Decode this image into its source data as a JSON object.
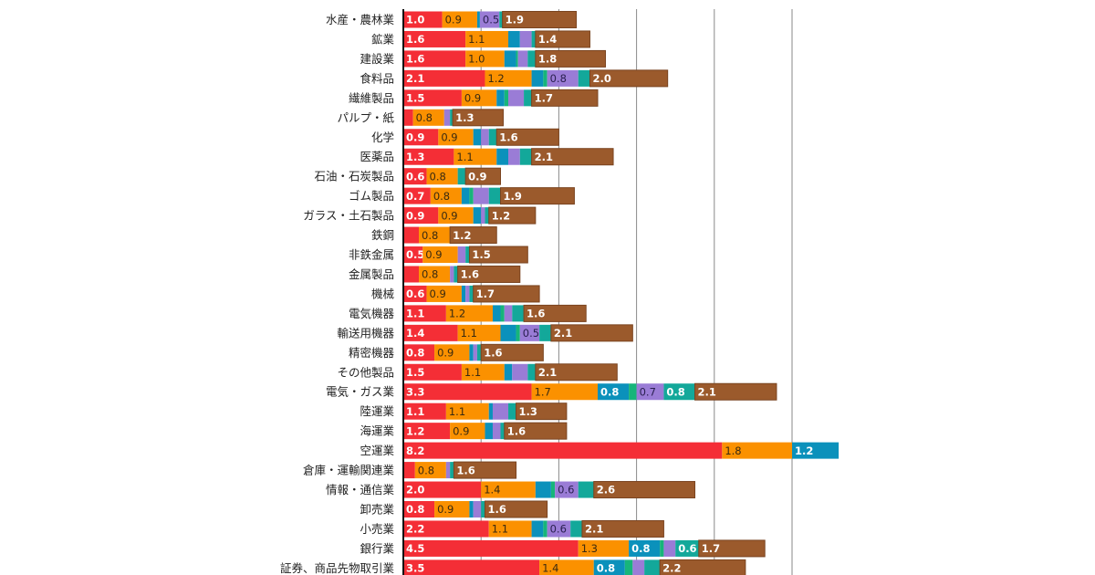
{
  "chart_data": {
    "type": "bar",
    "orientation": "horizontal",
    "stacked": true,
    "title": "",
    "xlabel": "",
    "ylabel": "",
    "xlim": [
      0,
      11
    ],
    "grid": true,
    "grid_step": 2,
    "legend": "none",
    "categories": [
      "水産・農林業",
      "鉱業",
      "建設業",
      "食料品",
      "繊維製品",
      "パルプ・紙",
      "化学",
      "医薬品",
      "石油・石炭製品",
      "ゴム製品",
      "ガラス・土石製品",
      "鉄鋼",
      "非鉄金属",
      "金属製品",
      "機械",
      "電気機器",
      "輸送用機器",
      "精密機器",
      "その他製品",
      "電気・ガス業",
      "陸運業",
      "海運業",
      "空運業",
      "倉庫・運輸関連業",
      "情報・通信業",
      "卸売業",
      "小売業",
      "銀行業",
      "証券、商品先物取引業"
    ],
    "series": [
      {
        "name": "s1",
        "color": "#f42e36",
        "label_color": "#ffffff",
        "values": [
          1.0,
          1.6,
          1.6,
          2.1,
          1.5,
          0.25,
          0.9,
          1.3,
          0.6,
          0.7,
          0.9,
          0.4,
          0.5,
          0.4,
          0.6,
          1.1,
          1.4,
          0.8,
          1.5,
          3.3,
          1.1,
          1.2,
          8.2,
          0.3,
          2.0,
          0.8,
          2.2,
          4.5,
          3.5
        ],
        "labels": [
          "1.0",
          "1.6",
          "1.6",
          "2.1",
          "1.5",
          "",
          "0.9",
          "1.3",
          "0.6",
          "0.7",
          "0.9",
          "",
          "0.5",
          "",
          "0.6",
          "1.1",
          "1.4",
          "0.8",
          "1.5",
          "3.3",
          "1.1",
          "1.2",
          "8.2",
          "",
          "2.0",
          "0.8",
          "2.2",
          "4.5",
          "3.5"
        ]
      },
      {
        "name": "s2",
        "color": "#fb9100",
        "label_color": "#3a2a10",
        "values": [
          0.9,
          1.1,
          1.0,
          1.2,
          0.9,
          0.8,
          0.9,
          1.1,
          0.8,
          0.8,
          0.9,
          0.8,
          0.9,
          0.8,
          0.9,
          1.2,
          1.1,
          0.9,
          1.1,
          1.7,
          1.1,
          0.9,
          1.8,
          0.8,
          1.4,
          0.9,
          1.1,
          1.3,
          1.4
        ],
        "labels": [
          "0.9",
          "1.1",
          "1.0",
          "1.2",
          "0.9",
          "0.8",
          "0.9",
          "1.1",
          "0.8",
          "0.8",
          "0.9",
          "0.8",
          "0.9",
          "0.8",
          "0.9",
          "1.2",
          "1.1",
          "0.9",
          "1.1",
          "1.7",
          "1.1",
          "0.9",
          "1.8",
          "0.8",
          "1.4",
          "0.9",
          "1.1",
          "1.3",
          "1.4"
        ]
      },
      {
        "name": "s3",
        "color": "#0b91bb",
        "label_color": "#ffffff",
        "values": [
          0.07,
          0.3,
          0.3,
          0.3,
          0.2,
          0,
          0.2,
          0.3,
          0,
          0.2,
          0.2,
          0,
          0,
          0,
          0.1,
          0.2,
          0.4,
          0.1,
          0.2,
          0.8,
          0.1,
          0.2,
          1.2,
          0,
          0.4,
          0.1,
          0.3,
          0.8,
          0.8
        ],
        "labels": [
          "",
          "",
          "",
          "",
          "",
          "",
          "",
          "",
          "",
          "",
          "",
          "",
          "",
          "",
          "",
          "",
          "",
          "",
          "",
          "0.8",
          "",
          "",
          "1.2",
          "",
          "",
          "",
          "",
          "0.8",
          "0.8"
        ]
      },
      {
        "name": "s4",
        "color": "#17b57a",
        "label_color": "#ffffff",
        "values": [
          0,
          0,
          0.05,
          0.1,
          0.1,
          0,
          0,
          0,
          0,
          0.1,
          0,
          0,
          0,
          0,
          0,
          0.1,
          0.1,
          0,
          0,
          0.2,
          0,
          0,
          0,
          0,
          0.1,
          0,
          0.1,
          0.1,
          0.2
        ],
        "labels": [
          "",
          "",
          "",
          "",
          "",
          "",
          "",
          "",
          "",
          "",
          "",
          "",
          "",
          "",
          "",
          "",
          "",
          "",
          "",
          "",
          "",
          "",
          "",
          "",
          "",
          "",
          "",
          "",
          ""
        ]
      },
      {
        "name": "s5",
        "color": "#9a7cd6",
        "label_color": "#2a2050",
        "values": [
          0.5,
          0.3,
          0.25,
          0.8,
          0.4,
          0.15,
          0.2,
          0.3,
          0,
          0.4,
          0.1,
          0,
          0.2,
          0.1,
          0.1,
          0.2,
          0.5,
          0.1,
          0.4,
          0.7,
          0.4,
          0.2,
          0,
          0.1,
          0.6,
          0.2,
          0.6,
          0.3,
          0.3
        ],
        "labels": [
          "0.5",
          "",
          "",
          "0.8",
          "",
          "",
          "",
          "",
          "",
          "",
          "",
          "",
          "",
          "",
          "",
          "",
          "0.5",
          "",
          "",
          "0.7",
          "",
          "",
          "",
          "",
          "0.6",
          "",
          "0.6",
          "",
          ""
        ]
      },
      {
        "name": "s6",
        "color": "#13a89a",
        "label_color": "#ffffff",
        "values": [
          0.08,
          0.1,
          0.2,
          0.3,
          0.2,
          0.07,
          0.2,
          0.3,
          0.2,
          0.3,
          0.1,
          0,
          0.1,
          0.1,
          0.1,
          0.3,
          0.3,
          0.1,
          0.2,
          0.8,
          0.2,
          0.1,
          0,
          0.1,
          0.4,
          0.1,
          0.3,
          0.6,
          0.4
        ],
        "labels": [
          "",
          "",
          "",
          "",
          "",
          "",
          "",
          "",
          "",
          "",
          "",
          "",
          "",
          "",
          "",
          "",
          "",
          "",
          "",
          "0.8",
          "",
          "",
          "",
          "",
          "",
          "",
          "",
          "0.6",
          ""
        ]
      },
      {
        "name": "s7",
        "color": "#9b5a2c",
        "label_color": "#ffffff",
        "values": [
          1.9,
          1.4,
          1.8,
          2.0,
          1.7,
          1.3,
          1.6,
          2.1,
          0.9,
          1.9,
          1.2,
          1.2,
          1.5,
          1.6,
          1.7,
          1.6,
          2.1,
          1.6,
          2.1,
          2.1,
          1.3,
          1.6,
          0,
          1.6,
          2.6,
          1.6,
          2.1,
          1.7,
          2.2
        ],
        "labels": [
          "1.9",
          "1.4",
          "1.8",
          "2.0",
          "1.7",
          "1.3",
          "1.6",
          "2.1",
          "0.9",
          "1.9",
          "1.2",
          "1.2",
          "1.5",
          "1.6",
          "1.7",
          "1.6",
          "2.1",
          "1.6",
          "2.1",
          "2.1",
          "1.3",
          "1.6",
          "",
          "1.6",
          "2.6",
          "1.6",
          "2.1",
          "1.7",
          "2.2"
        ]
      }
    ]
  }
}
